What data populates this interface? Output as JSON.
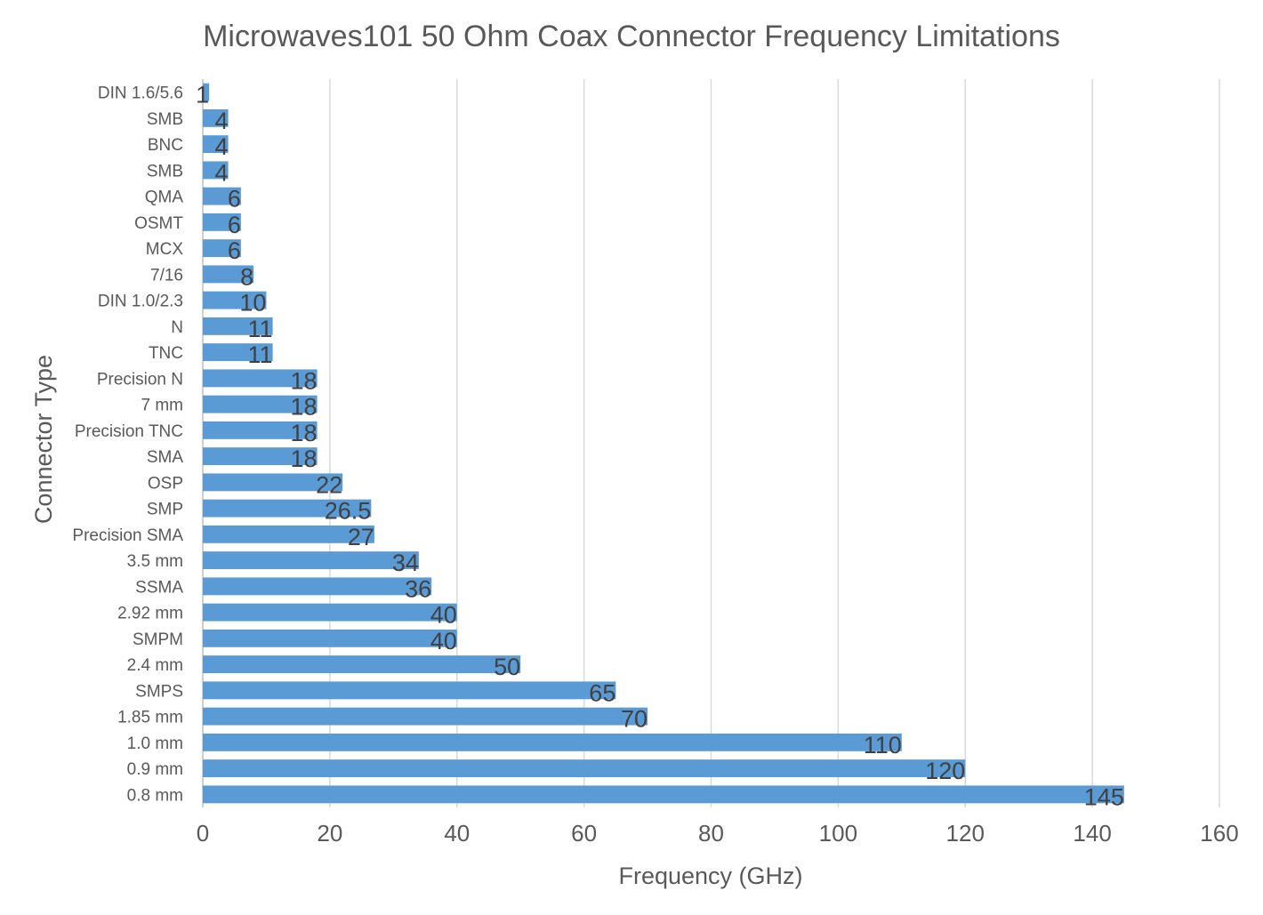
{
  "chart_data": {
    "type": "bar",
    "orientation": "horizontal",
    "title": "Microwaves101 50 Ohm Coax Connector Frequency Limitations",
    "xlabel": "Frequency (GHz)",
    "ylabel": "Connector Type",
    "xlim": [
      0,
      160
    ],
    "xticks": [
      0,
      20,
      40,
      60,
      80,
      100,
      120,
      140,
      160
    ],
    "grid": true,
    "legend": "none",
    "bar_color": "#5b9bd5",
    "categories": [
      "DIN 1.6/5.6",
      "SMB",
      "BNC",
      "SMB",
      "QMA",
      "OSMT",
      "MCX",
      "7/16",
      "DIN 1.0/2.3",
      "N",
      "TNC",
      "Precision N",
      "7 mm",
      "Precision TNC",
      "SMA",
      "OSP",
      "SMP",
      "Precision SMA",
      "3.5 mm",
      "SSMA",
      "2.92 mm",
      "SMPM",
      "2.4 mm",
      "SMPS",
      "1.85 mm",
      "1.0 mm",
      "0.9 mm",
      "0.8 mm"
    ],
    "values": [
      1,
      4,
      4,
      4,
      6,
      6,
      6,
      8,
      10,
      11,
      11,
      18,
      18,
      18,
      18,
      22,
      26.5,
      27,
      34,
      36,
      40,
      40,
      50,
      65,
      70,
      110,
      120,
      145
    ],
    "data_labels": [
      "1",
      "4",
      "4",
      "4",
      "6",
      "6",
      "6",
      "8",
      "10",
      "11",
      "11",
      "18",
      "18",
      "18",
      "18",
      "22",
      "26.5",
      "27",
      "34",
      "36",
      "40",
      "40",
      "50",
      "65",
      "70",
      "110",
      "120",
      "145"
    ]
  }
}
